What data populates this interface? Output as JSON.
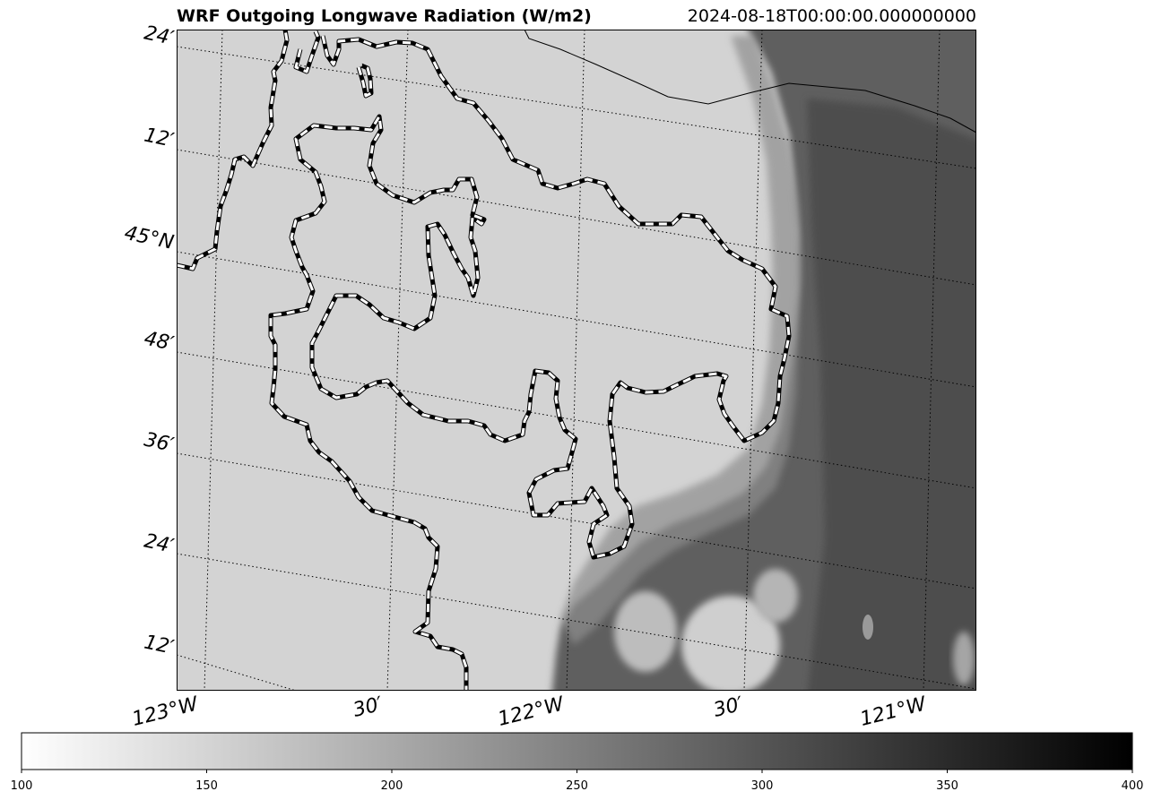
{
  "header": {
    "title": "WRF Outgoing Longwave Radiation (W/m2)",
    "timestamp": "2024-08-18T00:00:00.000000000"
  },
  "map": {
    "variable": "outgoing-longwave-radiation",
    "colormap": "grayscale (low = white, high = black)",
    "lat_labels": [
      "24′",
      "12′",
      "45°N",
      "48′",
      "36′",
      "24′",
      "12′"
    ],
    "lon_labels": [
      "123°W",
      "30′",
      "122°W",
      "30′",
      "121°W"
    ]
  },
  "colorbar": {
    "min": 100,
    "max": 400,
    "ticks": [
      "100",
      "150",
      "200",
      "250",
      "300",
      "350",
      "400"
    ],
    "tick_values": [
      100,
      150,
      200,
      250,
      300,
      350,
      400
    ]
  }
}
